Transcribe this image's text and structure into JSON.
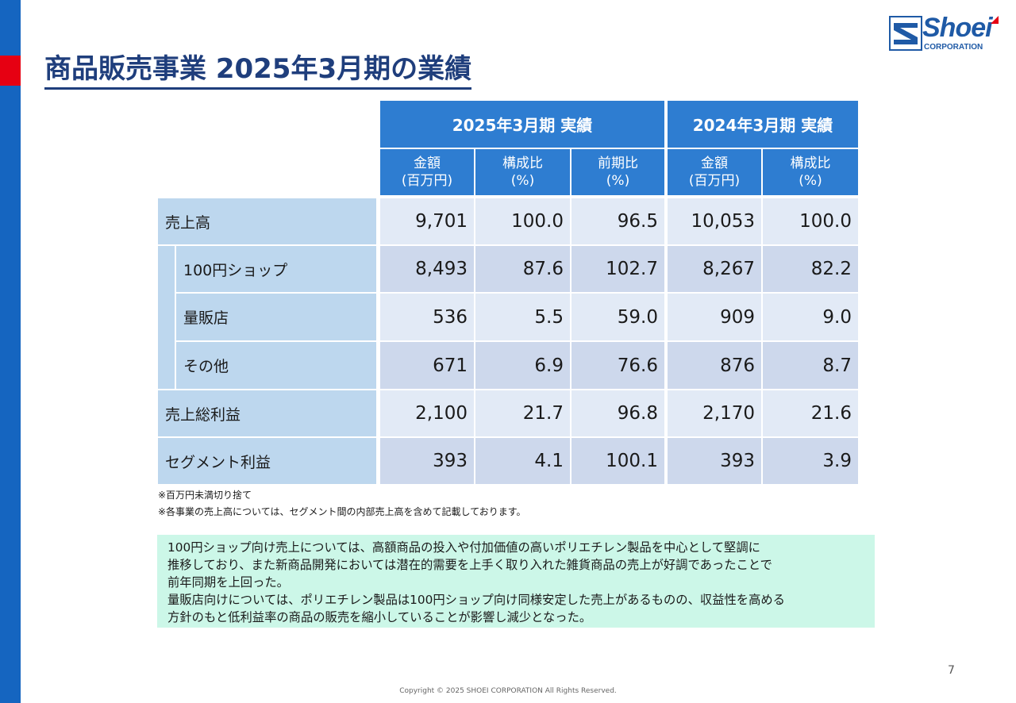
{
  "title": "商品販売事業 2025年3月期の業績",
  "logo": {
    "name": "Shoei",
    "sub": "CORPORATION"
  },
  "table": {
    "group_2025": "2025年3月期 実績",
    "group_2024": "2024年3月期 実績",
    "columns": [
      {
        "l1": "金額",
        "l2": "(百万円)"
      },
      {
        "l1": "構成比",
        "l2": "(%)"
      },
      {
        "l1": "前期比",
        "l2": "(%)"
      },
      {
        "l1": "金額",
        "l2": "(百万円)"
      },
      {
        "l1": "構成比",
        "l2": "(%)"
      }
    ],
    "rows": [
      {
        "label": "売上高",
        "values": [
          "9,701",
          "100.0",
          "96.5",
          "10,053",
          "100.0"
        ]
      },
      {
        "label": "100円ショップ",
        "values": [
          "8,493",
          "87.6",
          "102.7",
          "8,267",
          "82.2"
        ]
      },
      {
        "label": "量販店",
        "values": [
          "536",
          "5.5",
          "59.0",
          "909",
          "9.0"
        ]
      },
      {
        "label": "その他",
        "values": [
          "671",
          "6.9",
          "76.6",
          "876",
          "8.7"
        ]
      },
      {
        "label": "売上総利益",
        "values": [
          "2,100",
          "21.7",
          "96.8",
          "2,170",
          "21.6"
        ]
      },
      {
        "label": "セグメント利益",
        "values": [
          "393",
          "4.1",
          "100.1",
          "393",
          "3.9"
        ]
      }
    ]
  },
  "notes": [
    "※百万円未満切り捨て",
    "※各事業の売上高については、セグメント間の内部売上高を含めて記載しております。"
  ],
  "commentary": [
    "100円ショップ向け売上については、高額商品の投入や付加価値の高いポリエチレン製品を中心として堅調に",
    "推移しており、また新商品開発においては潜在的需要を上手く取り入れた雑貨商品の売上が好調であったことで",
    "前年同期を上回った。",
    "量販店向けについては、ポリエチレン製品は100円ショップ向け同様安定した売上があるものの、収益性を高める",
    "方針のもと低利益率の商品の販売を縮小していることが影響し減少となった。"
  ],
  "page_number": "7",
  "copyright": "Copyright © 2025 SHOEI CORPORATION All Rights Reserved.",
  "colors": {
    "brand": "#1f3e7c",
    "accent_red": "#e60012",
    "header_blue": "#2e7dd1",
    "label_blue": "#bdd7ee",
    "commentary_bg": "#ccf7e8"
  }
}
